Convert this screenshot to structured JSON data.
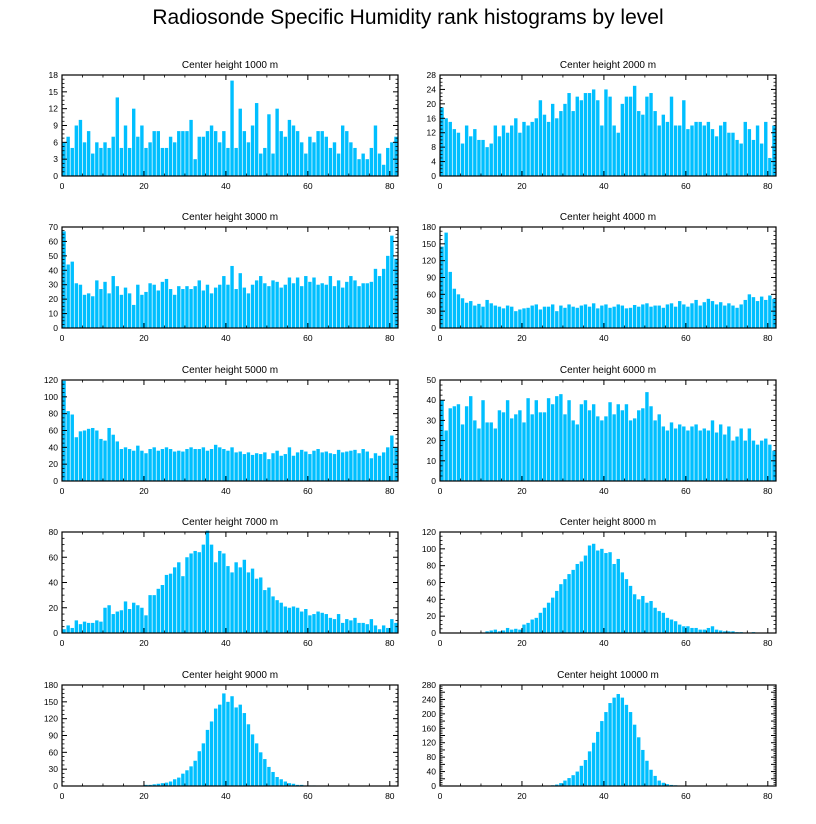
{
  "title": "Radiosonde Specific Humidity rank histograms by level",
  "bar_color": "#00bfff",
  "chart_data": [
    {
      "type": "bar",
      "title": "Center height 1000 m",
      "ylim": [
        0,
        18
      ],
      "yticks": [
        0,
        3,
        6,
        9,
        12,
        15,
        18
      ],
      "xticks": [
        0,
        20,
        40,
        60,
        80
      ],
      "values": [
        6,
        7,
        5,
        9,
        10,
        6,
        8,
        4,
        6,
        5,
        6,
        5,
        7,
        14,
        5,
        9,
        5,
        12,
        7,
        9,
        5,
        6,
        8,
        8,
        5,
        5,
        7,
        6,
        8,
        8,
        8,
        10,
        3,
        7,
        7,
        8,
        9,
        8,
        6,
        8,
        5,
        17,
        5,
        12,
        8,
        6,
        9,
        13,
        4,
        5,
        11,
        4,
        12,
        8,
        7,
        10,
        9,
        8,
        6,
        4,
        7,
        6,
        8,
        8,
        7,
        5,
        6,
        4,
        9,
        8,
        6,
        5,
        3,
        4,
        3,
        5,
        9,
        4,
        2,
        5,
        6,
        7
      ]
    },
    {
      "type": "bar",
      "title": "Center height 2000 m",
      "ylim": [
        0,
        28
      ],
      "yticks": [
        0,
        4,
        8,
        12,
        16,
        20,
        24,
        28
      ],
      "xticks": [
        0,
        20,
        40,
        60,
        80
      ],
      "values": [
        19,
        16,
        15,
        13,
        12,
        9,
        14,
        11,
        13,
        10,
        10,
        8,
        9,
        14,
        11,
        14,
        12,
        14,
        16,
        12,
        15,
        14,
        15,
        16,
        21,
        17,
        15,
        20,
        16,
        18,
        20,
        23,
        18,
        22,
        21,
        23,
        23,
        24,
        21,
        14,
        24,
        22,
        14,
        12,
        20,
        22,
        22,
        25,
        18,
        17,
        22,
        23,
        18,
        14,
        17,
        15,
        22,
        14,
        14,
        21,
        13,
        14,
        15,
        15,
        14,
        15,
        13,
        11,
        14,
        15,
        12,
        12,
        10,
        9,
        15,
        13,
        10,
        14,
        9,
        15,
        5,
        14
      ]
    },
    {
      "type": "bar",
      "title": "Center height 3000 m",
      "ylim": [
        0,
        70
      ],
      "yticks": [
        0,
        10,
        20,
        30,
        40,
        50,
        60,
        70
      ],
      "xticks": [
        0,
        20,
        40,
        60,
        80
      ],
      "values": [
        67,
        44,
        46,
        31,
        30,
        23,
        24,
        22,
        33,
        27,
        32,
        24,
        36,
        29,
        23,
        28,
        24,
        16,
        30,
        23,
        25,
        31,
        30,
        26,
        32,
        34,
        27,
        23,
        29,
        27,
        29,
        27,
        29,
        33,
        26,
        30,
        24,
        28,
        30,
        36,
        30,
        43,
        27,
        38,
        28,
        24,
        30,
        33,
        36,
        31,
        29,
        33,
        32,
        28,
        30,
        35,
        31,
        35,
        29,
        36,
        32,
        35,
        30,
        31,
        30,
        36,
        29,
        33,
        28,
        32,
        36,
        33,
        29,
        31,
        31,
        32,
        41,
        36,
        41,
        50,
        64,
        48
      ]
    },
    {
      "type": "bar",
      "title": "Center height 4000 m",
      "ylim": [
        0,
        180
      ],
      "yticks": [
        0,
        30,
        60,
        90,
        120,
        150,
        180
      ],
      "xticks": [
        0,
        20,
        40,
        60,
        80
      ],
      "values": [
        145,
        170,
        100,
        70,
        60,
        53,
        45,
        48,
        40,
        43,
        38,
        50,
        44,
        40,
        38,
        35,
        40,
        38,
        30,
        33,
        35,
        36,
        40,
        42,
        33,
        38,
        38,
        42,
        30,
        40,
        36,
        42,
        38,
        36,
        40,
        42,
        38,
        44,
        35,
        40,
        42,
        36,
        38,
        42,
        40,
        35,
        36,
        41,
        38,
        42,
        44,
        38,
        40,
        40,
        36,
        42,
        44,
        38,
        48,
        42,
        38,
        44,
        50,
        40,
        46,
        52,
        48,
        42,
        46,
        40,
        44,
        40,
        36,
        42,
        50,
        60,
        55,
        48,
        56,
        50,
        58,
        52
      ]
    },
    {
      "type": "bar",
      "title": "Center height 5000 m",
      "ylim": [
        0,
        120
      ],
      "yticks": [
        0,
        20,
        40,
        60,
        80,
        100,
        120
      ],
      "xticks": [
        0,
        20,
        40,
        60,
        80
      ],
      "values": [
        119,
        83,
        79,
        52,
        59,
        60,
        62,
        63,
        60,
        50,
        48,
        63,
        55,
        47,
        38,
        40,
        38,
        36,
        42,
        36,
        33,
        38,
        40,
        36,
        38,
        40,
        38,
        35,
        36,
        35,
        38,
        40,
        38,
        38,
        40,
        36,
        38,
        43,
        40,
        38,
        36,
        40,
        34,
        35,
        32,
        34,
        31,
        33,
        32,
        34,
        26,
        33,
        36,
        30,
        32,
        40,
        30,
        34,
        37,
        35,
        32,
        36,
        38,
        34,
        35,
        33,
        32,
        37,
        34,
        35,
        36,
        37,
        33,
        38,
        35,
        27,
        33,
        30,
        34,
        40,
        54,
        40
      ]
    },
    {
      "type": "bar",
      "title": "Center height 6000 m",
      "ylim": [
        0,
        50
      ],
      "yticks": [
        0,
        10,
        20,
        30,
        40,
        50
      ],
      "xticks": [
        0,
        20,
        40,
        60,
        80
      ],
      "values": [
        40,
        25,
        36,
        37,
        38,
        28,
        37,
        42,
        30,
        26,
        40,
        29,
        29,
        26,
        35,
        34,
        40,
        31,
        33,
        35,
        29,
        41,
        33,
        40,
        34,
        34,
        41,
        38,
        42,
        43,
        33,
        40,
        30,
        28,
        38,
        40,
        35,
        38,
        32,
        30,
        32,
        39,
        33,
        38,
        35,
        38,
        30,
        31,
        35,
        36,
        44,
        37,
        30,
        33,
        27,
        25,
        29,
        26,
        28,
        27,
        25,
        27,
        28,
        25,
        26,
        25,
        30,
        24,
        28,
        23,
        27,
        20,
        22,
        26,
        20,
        26,
        20,
        18,
        20,
        21,
        18,
        15
      ]
    },
    {
      "type": "bar",
      "title": "Center height 7000 m",
      "ylim": [
        0,
        80
      ],
      "yticks": [
        0,
        20,
        40,
        60,
        80
      ],
      "xticks": [
        0,
        20,
        40,
        60,
        80
      ],
      "values": [
        3,
        6,
        4,
        10,
        7,
        9,
        8,
        8,
        10,
        9,
        20,
        22,
        15,
        17,
        18,
        25,
        19,
        24,
        22,
        20,
        14,
        30,
        30,
        35,
        38,
        46,
        47,
        52,
        56,
        45,
        60,
        63,
        65,
        64,
        70,
        81,
        70,
        56,
        65,
        63,
        53,
        48,
        56,
        52,
        58,
        48,
        51,
        43,
        44,
        34,
        36,
        29,
        26,
        24,
        21,
        20,
        21,
        20,
        17,
        19,
        14,
        15,
        17,
        16,
        15,
        12,
        11,
        15,
        8,
        11,
        10,
        12,
        8,
        8,
        7,
        11,
        6,
        3,
        6,
        4,
        11,
        8
      ]
    },
    {
      "type": "bar",
      "title": "Center height 8000 m",
      "ylim": [
        0,
        120
      ],
      "yticks": [
        0,
        20,
        40,
        60,
        80,
        100,
        120
      ],
      "xticks": [
        0,
        20,
        40,
        60,
        80
      ],
      "values": [
        0,
        0,
        0,
        0,
        0,
        0,
        0,
        0,
        0,
        0,
        0,
        2,
        3,
        4,
        2,
        3,
        6,
        4,
        5,
        4,
        10,
        12,
        16,
        18,
        24,
        30,
        36,
        42,
        50,
        58,
        64,
        70,
        75,
        82,
        85,
        92,
        104,
        106,
        98,
        100,
        95,
        96,
        82,
        88,
        72,
        64,
        56,
        46,
        40,
        44,
        36,
        38,
        30,
        26,
        24,
        18,
        16,
        14,
        10,
        8,
        8,
        6,
        6,
        4,
        4,
        6,
        8,
        4,
        3,
        2,
        2,
        2,
        1,
        1,
        0,
        0,
        1,
        0,
        0,
        0,
        0,
        0
      ]
    },
    {
      "type": "bar",
      "title": "Center height 9000 m",
      "ylim": [
        0,
        180
      ],
      "yticks": [
        0,
        30,
        60,
        90,
        120,
        150,
        180
      ],
      "xticks": [
        0,
        20,
        40,
        60,
        80
      ],
      "values": [
        0,
        0,
        0,
        0,
        0,
        0,
        0,
        0,
        0,
        0,
        0,
        0,
        0,
        0,
        0,
        0,
        0,
        0,
        0,
        0,
        2,
        2,
        3,
        4,
        5,
        6,
        8,
        12,
        15,
        22,
        28,
        35,
        45,
        62,
        76,
        100,
        115,
        138,
        145,
        165,
        150,
        160,
        140,
        145,
        130,
        110,
        92,
        76,
        60,
        48,
        34,
        25,
        16,
        12,
        8,
        5,
        4,
        2,
        2,
        1,
        1,
        1,
        0,
        0,
        0,
        0,
        0,
        0,
        0,
        0,
        0,
        0,
        0,
        0,
        0,
        0,
        0,
        0,
        0,
        0,
        0,
        0
      ]
    },
    {
      "type": "bar",
      "title": "Center height 10000 m",
      "ylim": [
        0,
        280
      ],
      "yticks": [
        0,
        20,
        40,
        60,
        80,
        100,
        120,
        140,
        160,
        180,
        200,
        220,
        240,
        260,
        280
      ],
      "ytick_labels": [
        "0",
        "",
        "40",
        "",
        "80",
        "",
        "120",
        "",
        "160",
        "",
        "200",
        "",
        "240",
        "",
        "280"
      ],
      "xticks": [
        0,
        20,
        40,
        60,
        80
      ],
      "values": [
        0,
        0,
        0,
        0,
        0,
        0,
        0,
        0,
        0,
        0,
        0,
        0,
        0,
        0,
        0,
        0,
        0,
        0,
        0,
        0,
        0,
        0,
        0,
        0,
        0,
        0,
        1,
        2,
        4,
        8,
        15,
        22,
        30,
        40,
        56,
        72,
        96,
        120,
        150,
        180,
        205,
        230,
        245,
        255,
        245,
        225,
        205,
        170,
        135,
        100,
        70,
        45,
        28,
        15,
        9,
        5,
        3,
        2,
        1,
        1,
        0,
        0,
        0,
        0,
        0,
        0,
        0,
        0,
        0,
        0,
        0,
        0,
        0,
        0,
        0,
        0,
        0,
        0,
        0,
        0,
        0,
        0
      ]
    }
  ]
}
